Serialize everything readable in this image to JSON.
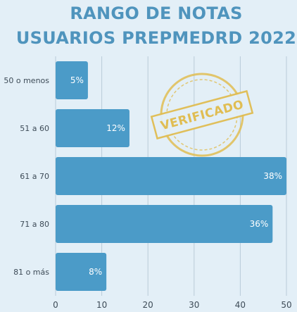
{
  "chart_data": {
    "type": "bar",
    "orientation": "horizontal",
    "title_lines": [
      "RANGO DE NOTAS",
      "USUARIOS PREPMEDRD 2022"
    ],
    "categories": [
      "50 o menos",
      "51 a 60",
      "61 a 70",
      "71 a 80",
      "81 o más"
    ],
    "values": [
      7,
      16,
      50,
      47,
      11
    ],
    "data_labels": [
      "5%",
      "12%",
      "38%",
      "36%",
      "8%"
    ],
    "xticks": [
      "0",
      "10",
      "20",
      "30",
      "40",
      "50"
    ],
    "xlim": [
      0,
      50
    ],
    "grid": true,
    "bar_color": "#4b9bc8",
    "title_color": "#4f94bd",
    "background_color": "#e3eff7"
  },
  "stamp": {
    "text": "VERIFICADO",
    "color": "#e0bd52"
  }
}
